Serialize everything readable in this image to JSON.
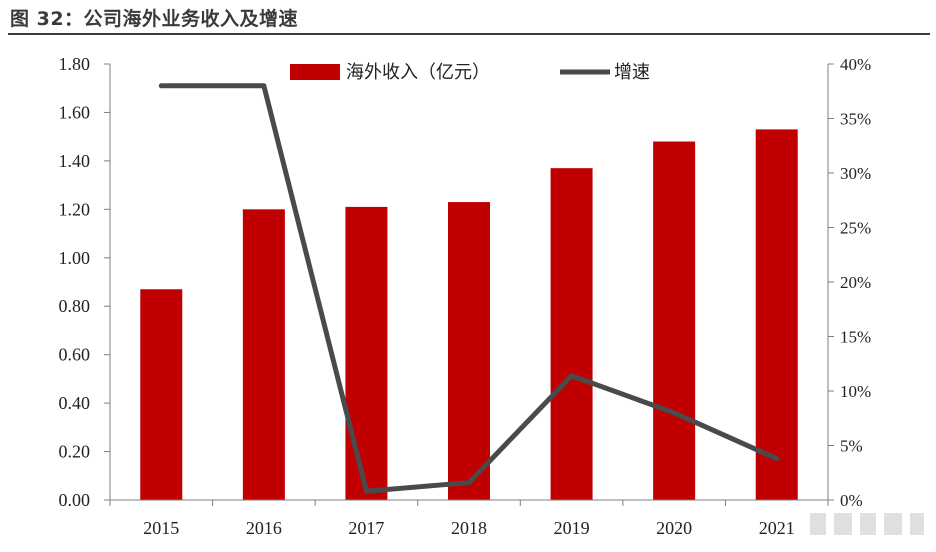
{
  "figure": {
    "title": "图 32：公司海外业务收入及增速"
  },
  "chart_data": {
    "type": "bar+line",
    "categories": [
      "2015",
      "2016",
      "2017",
      "2018",
      "2019",
      "2020",
      "2021"
    ],
    "series": [
      {
        "name": "海外收入（亿元）",
        "type": "bar",
        "axis": "left",
        "color": "#c00000",
        "values": [
          0.87,
          1.2,
          1.21,
          1.23,
          1.37,
          1.48,
          1.53
        ]
      },
      {
        "name": "增速",
        "type": "line",
        "axis": "right",
        "color": "#4a4a4a",
        "values": [
          38.0,
          38.0,
          0.8,
          1.6,
          11.4,
          8.0,
          3.8
        ]
      }
    ],
    "y_left": {
      "min": 0,
      "max": 1.8,
      "step": 0.2,
      "ticks": [
        "0.00",
        "0.20",
        "0.40",
        "0.60",
        "0.80",
        "1.00",
        "1.20",
        "1.40",
        "1.60",
        "1.80"
      ]
    },
    "y_right": {
      "min": 0,
      "max": 40,
      "step": 5,
      "ticks": [
        "0%",
        "5%",
        "10%",
        "15%",
        "20%",
        "25%",
        "30%",
        "35%",
        "40%"
      ]
    },
    "legend_position": "top-center",
    "grid": false
  }
}
